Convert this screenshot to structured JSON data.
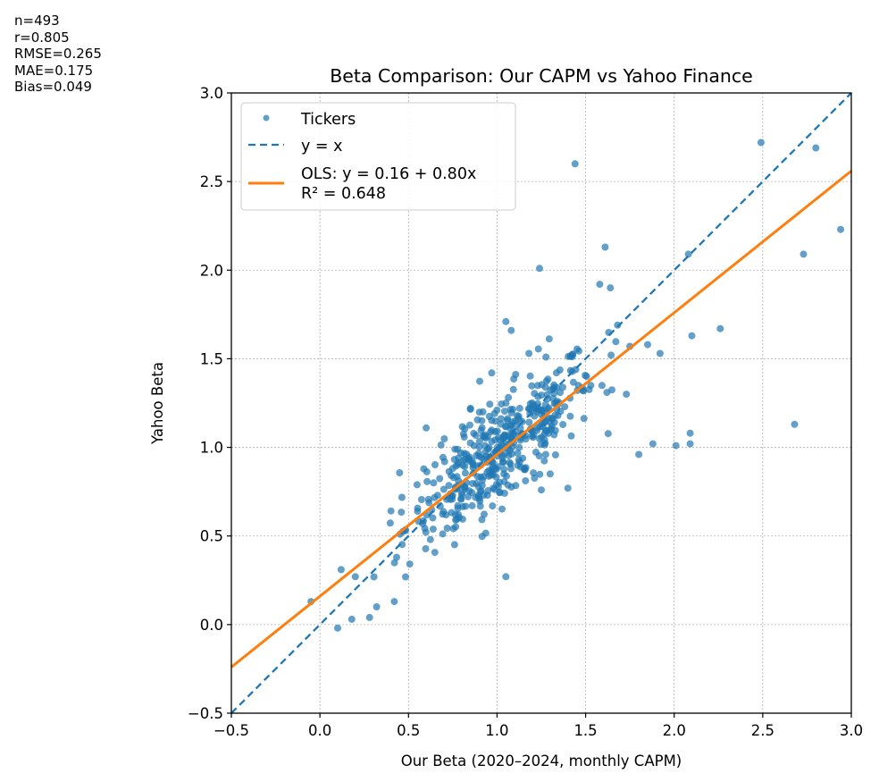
{
  "stats": [
    "n=493",
    "r=0.805",
    "RMSE=0.265",
    "MAE=0.175",
    "Bias=0.049"
  ],
  "chart_data": {
    "type": "scatter",
    "title": "Beta Comparison: Our CAPM vs Yahoo Finance",
    "xlabel": "Our Beta (2020–2024, monthly CAPM)",
    "ylabel": "Yahoo Beta",
    "xlim": [
      -0.5,
      3.0
    ],
    "ylim": [
      -0.5,
      3.0
    ],
    "xticks": [
      "−0.5",
      "0.0",
      "0.5",
      "1.0",
      "1.5",
      "2.0",
      "2.5",
      "3.0"
    ],
    "yticks": [
      "−0.5",
      "0.0",
      "0.5",
      "1.0",
      "1.5",
      "2.0",
      "2.5",
      "3.0"
    ],
    "grid": true,
    "legend_position": "top-left",
    "legend": [
      "Tickers",
      "y = x",
      "OLS: y = 0.16 + 0.80x",
      "R² = 0.648"
    ],
    "colors": {
      "points": "#1f77b4",
      "identity": "#1f77b4",
      "fit": "#ff7f0e"
    },
    "fit": {
      "intercept": 0.16,
      "slope": 0.8
    },
    "outliers": [
      [
        -0.05,
        0.13
      ],
      [
        0.1,
        -0.02
      ],
      [
        0.12,
        0.31
      ],
      [
        0.18,
        0.03
      ],
      [
        0.2,
        0.27
      ],
      [
        0.28,
        0.04
      ],
      [
        0.32,
        0.1
      ],
      [
        0.42,
        0.13
      ],
      [
        0.6,
        1.11
      ],
      [
        0.85,
        1.22
      ],
      [
        0.97,
        1.42
      ],
      [
        1.05,
        0.27
      ],
      [
        1.05,
        1.71
      ],
      [
        1.08,
        1.66
      ],
      [
        1.18,
        1.53
      ],
      [
        1.24,
        2.01
      ],
      [
        1.44,
        2.6
      ],
      [
        1.58,
        1.92
      ],
      [
        1.61,
        2.13
      ],
      [
        1.64,
        1.9
      ],
      [
        1.62,
        1.31
      ],
      [
        1.73,
        1.3
      ],
      [
        1.8,
        0.96
      ],
      [
        1.88,
        1.02
      ],
      [
        1.92,
        1.53
      ],
      [
        2.01,
        1.01
      ],
      [
        2.08,
        2.09
      ],
      [
        2.09,
        1.08
      ],
      [
        2.09,
        1.02
      ],
      [
        2.1,
        1.63
      ],
      [
        2.26,
        1.67
      ],
      [
        2.49,
        2.72
      ],
      [
        2.68,
        1.13
      ],
      [
        2.73,
        2.09
      ],
      [
        2.8,
        2.69
      ],
      [
        2.94,
        2.23
      ],
      [
        1.75,
        1.57
      ],
      [
        1.85,
        1.58
      ],
      [
        1.68,
        1.69
      ],
      [
        1.4,
        0.77
      ],
      [
        1.3,
        0.85
      ],
      [
        1.25,
        0.76
      ]
    ]
  }
}
